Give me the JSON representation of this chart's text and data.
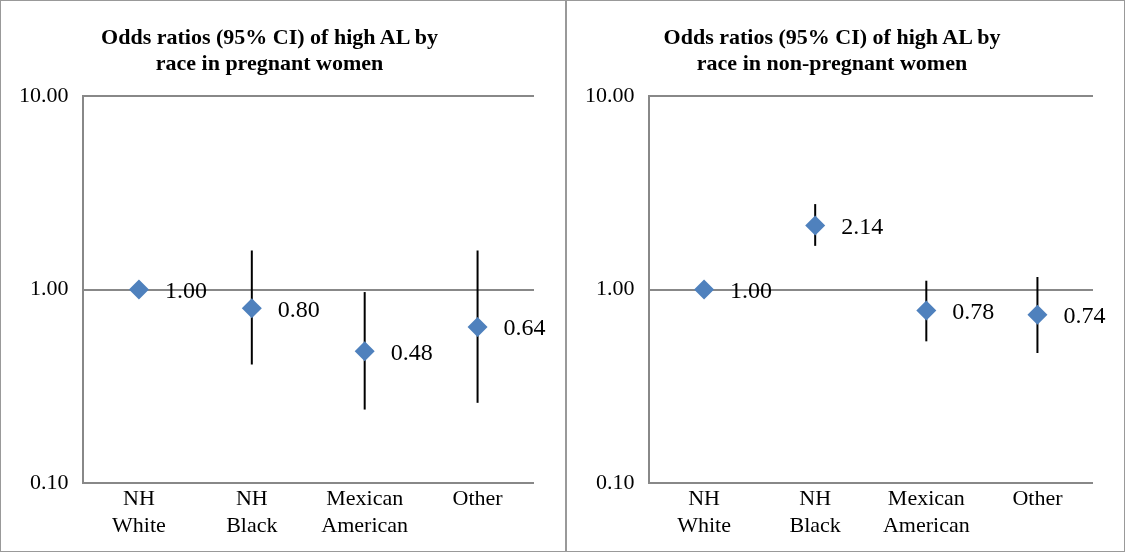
{
  "chart_data": [
    {
      "type": "scatter",
      "title": "Odds ratios (95% CI) of high AL by race in pregnant women",
      "categories": [
        "NH White",
        "NH Black",
        "Mexican American",
        "Other"
      ],
      "series": [
        {
          "color": "#4f81bd",
          "values": [
            1.0,
            0.8,
            0.48,
            0.64
          ],
          "errors": [
            null,
            [
              0.41,
              1.59
            ],
            [
              0.24,
              0.97
            ],
            [
              0.26,
              1.59
            ]
          ],
          "value_labels": [
            "1.00",
            "0.80",
            "0.48",
            "0.64"
          ]
        }
      ],
      "log": "y",
      "ylim": [
        0.1,
        10
      ],
      "yticks": [
        {
          "value": 0.1,
          "label": "0.10"
        },
        {
          "value": 1,
          "label": "1.00"
        },
        {
          "value": 10,
          "label": "10.00"
        }
      ],
      "grid": "y",
      "marker": "diamond",
      "legend": false
    },
    {
      "type": "scatter",
      "title": "Odds ratios (95% CI) of high AL by race in non-pregnant women",
      "categories": [
        "NH White",
        "NH Black",
        "Mexican American",
        "Other"
      ],
      "series": [
        {
          "color": "#4f81bd",
          "values": [
            1.0,
            2.14,
            0.78,
            0.74
          ],
          "errors": [
            null,
            [
              1.68,
              2.76
            ],
            [
              0.54,
              1.11
            ],
            [
              0.47,
              1.16
            ]
          ],
          "value_labels": [
            "1.00",
            "2.14",
            "0.78",
            "0.74"
          ]
        }
      ],
      "log": "y",
      "ylim": [
        0.1,
        10
      ],
      "yticks": [
        {
          "value": 0.1,
          "label": "0.10"
        },
        {
          "value": 1,
          "label": "1.00"
        },
        {
          "value": 10,
          "label": "10.00"
        }
      ],
      "grid": "y",
      "marker": "diamond",
      "legend": false
    }
  ]
}
